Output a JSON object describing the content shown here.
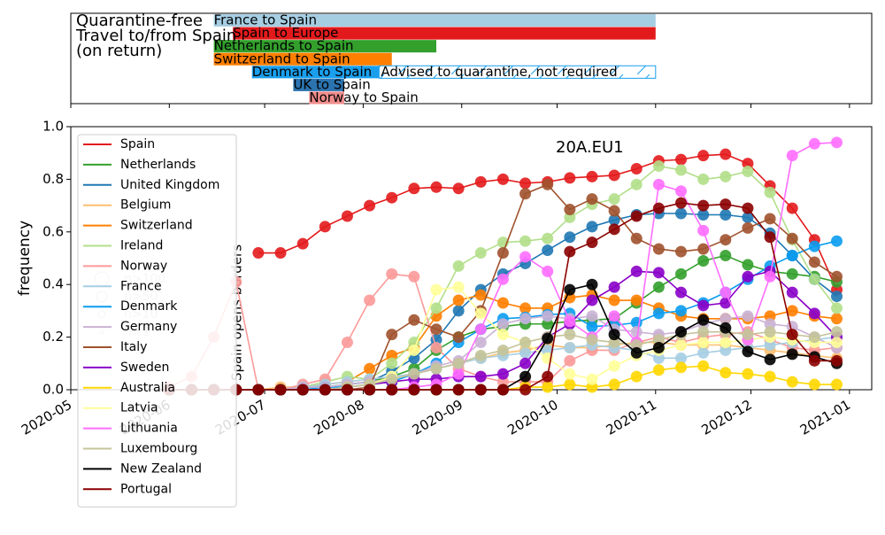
{
  "chart_data": [
    {
      "type": "timeline",
      "title": [
        "Quarantine-free",
        "Travel to/from Spain",
        "(on return)"
      ],
      "xlim": [
        0,
        252
      ],
      "xticks": [
        0,
        31,
        61,
        92,
        123,
        153,
        184,
        214,
        245
      ],
      "bars": [
        {
          "label": "France to Spain",
          "start": 45,
          "end": 184,
          "color": "#a6cee3"
        },
        {
          "label": "Spain to Europe",
          "start": 51,
          "end": 184,
          "color": "#e31a1c"
        },
        {
          "label": "Netherlands to Spain",
          "start": 45,
          "end": 115,
          "color": "#33a02c"
        },
        {
          "label": "Switzerland to Spain",
          "start": 45,
          "end": 101,
          "color": "#ff7f00"
        },
        {
          "label": "Denmark to Spain",
          "start": 57,
          "end": 97,
          "color": "#1a9fee",
          "advisory": {
            "label": "Advised to quarantine, not required",
            "start": 97,
            "end": 184
          }
        },
        {
          "label": "UK to Spain",
          "start": 70,
          "end": 86,
          "color": "#2b74b0"
        },
        {
          "label": "Norway to Spain",
          "start": 75,
          "end": 86,
          "color": "#f08c8c"
        }
      ]
    },
    {
      "type": "line",
      "ylabel": "frequency",
      "xlim": [
        0,
        252
      ],
      "ylim": [
        0,
        1
      ],
      "xticks": [
        {
          "value": 0,
          "label": "2020-05"
        },
        {
          "value": 31,
          "label": "2020-06"
        },
        {
          "value": 61,
          "label": "2020-07"
        },
        {
          "value": 92,
          "label": "2020-08"
        },
        {
          "value": 123,
          "label": "2020-09"
        },
        {
          "value": 153,
          "label": "2020-10"
        },
        {
          "value": 184,
          "label": "2020-11"
        },
        {
          "value": 214,
          "label": "2020-12"
        },
        {
          "value": 245,
          "label": "2021-01"
        }
      ],
      "yticks": [
        {
          "value": 0,
          "label": "0.0"
        },
        {
          "value": 0.2,
          "label": "0.2"
        },
        {
          "value": 0.4,
          "label": "0.4"
        },
        {
          "value": 0.6,
          "label": "0.6"
        },
        {
          "value": 0.8,
          "label": "0.8"
        },
        {
          "value": 1,
          "label": "1.0"
        }
      ],
      "annotations": [
        "20A.EU1",
        "Spain opens borders"
      ],
      "size_legend": [
        "n>100",
        "n>50",
        "n>10",
        "n>1"
      ],
      "legend": "upper left",
      "x": [
        31,
        38,
        45,
        52,
        59,
        66,
        73,
        80,
        87,
        94,
        101,
        108,
        115,
        122,
        129,
        136,
        143,
        150,
        157,
        164,
        171,
        178,
        185,
        192,
        199,
        206,
        213,
        220,
        227,
        234,
        241
      ],
      "series": [
        {
          "name": "Spain",
          "color": "#e31a1c",
          "values": [
            null,
            null,
            null,
            null,
            0.52,
            0.52,
            0.555,
            0.62,
            0.66,
            0.7,
            0.73,
            0.765,
            0.77,
            0.765,
            0.79,
            0.8,
            0.785,
            0.79,
            0.805,
            0.81,
            0.815,
            0.84,
            0.87,
            0.875,
            0.89,
            0.895,
            0.86,
            0.775,
            0.69,
            0.57,
            0.38
          ]
        },
        {
          "name": "Netherlands",
          "color": "#33a02c",
          "values": [
            0,
            0,
            0,
            0,
            0,
            0,
            0.01,
            0.01,
            0.02,
            0.03,
            0.05,
            0.08,
            0.15,
            0.2,
            0.23,
            0.24,
            0.25,
            0.25,
            0.26,
            0.265,
            0.27,
            0.33,
            0.39,
            0.44,
            0.49,
            0.51,
            0.475,
            0.45,
            0.44,
            0.43,
            0.41
          ]
        },
        {
          "name": "United Kingdom",
          "color": "#1f78b4",
          "values": [
            0,
            0,
            0,
            0,
            0,
            0,
            0.01,
            0.01,
            0.02,
            0.03,
            0.07,
            0.12,
            0.19,
            0.3,
            0.38,
            0.44,
            0.48,
            0.53,
            0.58,
            0.62,
            0.645,
            0.665,
            0.67,
            0.67,
            0.665,
            0.665,
            0.655,
            0.595,
            0.51,
            0.42,
            0.355
          ]
        },
        {
          "name": "Belgium",
          "color": "#fdbf6f",
          "values": [
            0,
            0,
            0,
            0,
            0,
            0.01,
            0.01,
            0.02,
            0.03,
            0.04,
            0.05,
            0.06,
            0.08,
            0.1,
            0.12,
            0.14,
            0.15,
            0.17,
            0.16,
            0.16,
            0.17,
            0.18,
            0.18,
            0.17,
            0.17,
            0.17,
            0.16,
            0.15,
            0.14,
            0.13,
            0.12
          ]
        },
        {
          "name": "Switzerland",
          "color": "#ff7f00",
          "values": [
            0,
            0,
            0,
            0,
            0,
            0,
            0.01,
            0.02,
            0.03,
            0.08,
            0.13,
            0.16,
            0.28,
            0.34,
            0.36,
            0.33,
            0.31,
            0.31,
            0.35,
            0.36,
            0.34,
            0.34,
            0.31,
            0.28,
            0.27,
            0.27,
            0.27,
            0.28,
            0.3,
            0.28,
            0.27
          ]
        },
        {
          "name": "Ireland",
          "color": "#b2df8a",
          "values": [
            0,
            0,
            0,
            0,
            0,
            0,
            0.01,
            0.03,
            0.05,
            0.04,
            0.1,
            0.18,
            0.31,
            0.47,
            0.52,
            0.56,
            0.565,
            0.575,
            0.655,
            0.705,
            0.725,
            0.78,
            0.85,
            0.835,
            0.8,
            0.81,
            0.83,
            0.75,
            0.57,
            0.42,
            0.31
          ]
        },
        {
          "name": "Norway",
          "color": "#fb9a99",
          "values": [
            0.01,
            0.05,
            0.2,
            0.41,
            0,
            0,
            0.02,
            0.04,
            0.18,
            0.34,
            0.44,
            0.43,
            0.16,
            0.08,
            0.05,
            0.03,
            0.03,
            0.03,
            0.11,
            0.15,
            0.15,
            0.18,
            0.2,
            0.18,
            0.2,
            0.21,
            0.22,
            0.19,
            0.16,
            0.15,
            0.16
          ]
        },
        {
          "name": "France",
          "color": "#a6cee3",
          "values": [
            0,
            0,
            0,
            0,
            0,
            0,
            0.01,
            0.02,
            0.03,
            0.04,
            0.05,
            0.06,
            0.08,
            0.1,
            0.12,
            0.13,
            0.14,
            0.15,
            0.16,
            0.17,
            0.16,
            0.15,
            0.12,
            0.12,
            0.14,
            0.15,
            0.16,
            0.17,
            0.18,
            0.19,
            0.2
          ]
        },
        {
          "name": "Denmark",
          "color": "#0a9cf0",
          "values": [
            0,
            0,
            0,
            0,
            0,
            0,
            0,
            0.01,
            0.01,
            0.02,
            0.03,
            0.06,
            0.1,
            0.18,
            0.23,
            0.27,
            0.275,
            0.285,
            0.29,
            0.24,
            0.245,
            0.255,
            0.29,
            0.3,
            0.33,
            0.37,
            0.42,
            0.47,
            0.51,
            0.545,
            0.565
          ]
        },
        {
          "name": "Germany",
          "color": "#cab2d6",
          "values": [
            0,
            0,
            0,
            0,
            0,
            0,
            0.01,
            0.01,
            0.02,
            0.03,
            0.04,
            0.06,
            0.09,
            0.11,
            0.18,
            0.25,
            0.27,
            0.28,
            0.27,
            0.28,
            0.23,
            0.22,
            0.21,
            0.22,
            0.25,
            0.27,
            0.28,
            0.25,
            0.24,
            0.2,
            0.16
          ]
        },
        {
          "name": "Italy",
          "color": "#a0522d",
          "values": [
            0,
            0,
            0,
            0,
            0,
            0,
            0,
            0,
            0,
            0.01,
            0.21,
            0.265,
            0.23,
            0.2,
            0.3,
            0.52,
            0.745,
            0.78,
            0.685,
            0.725,
            0.68,
            0.575,
            0.535,
            0.525,
            0.535,
            0.57,
            0.615,
            0.65,
            0.575,
            0.485,
            0.43
          ]
        },
        {
          "name": "Sweden",
          "color": "#8a00c8",
          "values": [
            0,
            0,
            0,
            0,
            0,
            0,
            0,
            0,
            0.01,
            0.02,
            0.03,
            0.04,
            0.04,
            0.05,
            0.05,
            0.06,
            0.1,
            0.2,
            0.25,
            0.34,
            0.39,
            0.45,
            0.445,
            0.37,
            0.32,
            0.33,
            0.43,
            0.45,
            0.37,
            0.29,
            0.2
          ]
        },
        {
          "name": "Australia",
          "color": "#ffd700",
          "values": [
            0,
            0,
            0,
            0,
            0,
            0,
            0,
            0,
            0,
            0,
            0,
            0,
            0,
            0,
            0,
            0,
            0.01,
            0.01,
            0.02,
            0.01,
            0.02,
            0.05,
            0.075,
            0.085,
            0.09,
            0.065,
            0.06,
            0.05,
            0.03,
            0.02,
            0.02
          ]
        },
        {
          "name": "Latvia",
          "color": "#ffff99",
          "values": [
            0,
            0,
            0,
            0,
            0,
            0,
            0,
            0,
            0.01,
            0.02,
            0.05,
            0.15,
            0.38,
            0.39,
            0.29,
            0.21,
            0.18,
            0.12,
            0.06,
            0.04,
            0.09,
            0.13,
            0.15,
            0.17,
            0.18,
            0.18,
            0.19,
            0.2,
            0.19,
            0.18,
            0.18
          ]
        },
        {
          "name": "Lithuania",
          "color": "#ff6eff",
          "values": [
            0,
            0,
            0,
            0,
            0,
            0,
            0,
            0,
            0,
            0,
            0,
            0.01,
            0.02,
            0.06,
            0.23,
            0.42,
            0.505,
            0.45,
            0.26,
            0.2,
            0.28,
            0.18,
            0.78,
            0.755,
            0.605,
            0.37,
            0.19,
            0.43,
            0.89,
            0.935,
            0.94
          ]
        },
        {
          "name": "Luxembourg",
          "color": "#c4c49a",
          "values": [
            0,
            0,
            0,
            0,
            0,
            0,
            0,
            0,
            0.01,
            0.02,
            0.04,
            0.06,
            0.08,
            0.1,
            0.13,
            0.15,
            0.18,
            0.2,
            0.21,
            0.19,
            0.18,
            0.17,
            0.19,
            0.21,
            0.22,
            0.22,
            0.21,
            0.22,
            0.21,
            0.2,
            0.22
          ]
        },
        {
          "name": "New Zealand",
          "color": "#000000",
          "values": [
            0,
            0,
            0,
            0,
            0,
            0,
            0,
            0,
            0,
            0,
            0,
            0,
            0,
            0,
            0,
            0,
            0.05,
            0.195,
            0.38,
            0.4,
            0.21,
            0.14,
            0.16,
            0.22,
            0.265,
            0.235,
            0.145,
            0.115,
            0.135,
            0.125,
            0.1
          ]
        },
        {
          "name": "Portugal",
          "color": "#8b0000",
          "values": [
            0,
            0,
            0,
            0,
            0,
            0,
            0,
            0,
            0,
            0,
            0,
            0,
            0,
            0,
            0,
            0,
            0,
            0.05,
            0.525,
            0.56,
            0.61,
            0.66,
            0.69,
            0.71,
            0.7,
            0.705,
            0.69,
            0.58,
            0.21,
            0.11,
            0.11
          ]
        }
      ]
    }
  ]
}
